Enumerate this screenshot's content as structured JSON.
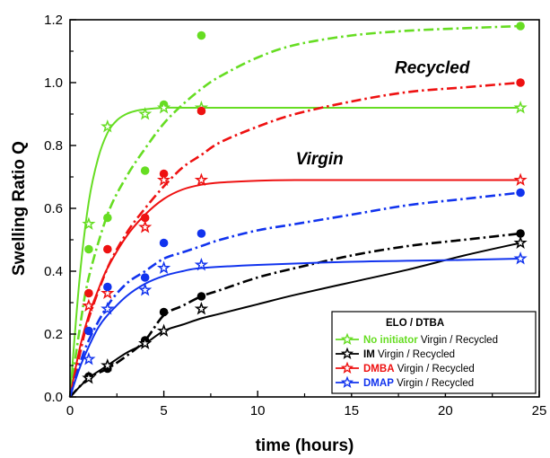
{
  "chart_data": {
    "type": "line",
    "xlabel": "time (hours)",
    "ylabel": "Swelling Ratio Q",
    "xlim": [
      0,
      25
    ],
    "ylim": [
      0,
      1.2
    ],
    "x_ticks": [
      0,
      5,
      10,
      15,
      20,
      25
    ],
    "x_tick_labels": [
      "0",
      "5",
      "10",
      "15",
      "20",
      "25"
    ],
    "y_ticks": [
      0,
      0.2,
      0.4,
      0.6,
      0.8,
      1.0,
      1.2
    ],
    "y_tick_labels": [
      "0.0",
      "0.2",
      "0.4",
      "0.6",
      "0.8",
      "1.0",
      "1.2"
    ],
    "grid": false,
    "legend_position": "bottom-right",
    "legend_title": "ELO / DTBA",
    "legend_suffix": "Virgin / Recycled",
    "annotations": [
      {
        "text": "Recycled",
        "x": 19.3,
        "y": 1.03
      },
      {
        "text": "Virgin",
        "x": 13.3,
        "y": 0.74
      }
    ],
    "series": [
      {
        "name": "No initiator",
        "color": "#66dd22",
        "virgin_points": {
          "x": [
            1,
            2,
            4,
            5,
            7,
            24
          ],
          "y": [
            0.55,
            0.86,
            0.9,
            0.92,
            0.92,
            0.92
          ]
        },
        "recycled_points": {
          "x": [
            1,
            2,
            4,
            5,
            7,
            24
          ],
          "y": [
            0.47,
            0.57,
            0.72,
            0.93,
            1.15,
            1.18
          ]
        },
        "virgin_fit": {
          "x": [
            0,
            0.5,
            1,
            1.5,
            2,
            2.5,
            3,
            3.5,
            4,
            5,
            6,
            7,
            10,
            15,
            20,
            24
          ],
          "y": [
            0,
            0.37,
            0.62,
            0.76,
            0.84,
            0.88,
            0.9,
            0.91,
            0.915,
            0.92,
            0.92,
            0.92,
            0.92,
            0.92,
            0.92,
            0.92
          ]
        },
        "recycled_fit": {
          "x": [
            0,
            0.5,
            1,
            2,
            3,
            4,
            5,
            6,
            7,
            8,
            10,
            12,
            15,
            18,
            21,
            24
          ],
          "y": [
            0,
            0.21,
            0.38,
            0.58,
            0.7,
            0.79,
            0.87,
            0.93,
            0.98,
            1.02,
            1.08,
            1.12,
            1.15,
            1.165,
            1.173,
            1.18
          ]
        }
      },
      {
        "name": "IM",
        "color": "#000000",
        "virgin_points": {
          "x": [
            1,
            2,
            4,
            5,
            7,
            24
          ],
          "y": [
            0.06,
            0.1,
            0.17,
            0.21,
            0.28,
            0.49
          ]
        },
        "recycled_points": {
          "x": [
            1,
            2,
            4,
            5,
            7,
            24
          ],
          "y": [
            0.065,
            0.09,
            0.18,
            0.27,
            0.32,
            0.52
          ]
        },
        "virgin_fit": {
          "x": [
            0,
            1,
            2,
            3,
            4,
            5,
            6,
            7,
            8,
            10,
            12,
            15,
            18,
            21,
            24
          ],
          "y": [
            0,
            0.06,
            0.1,
            0.14,
            0.17,
            0.21,
            0.23,
            0.25,
            0.265,
            0.295,
            0.325,
            0.365,
            0.405,
            0.45,
            0.49
          ]
        },
        "recycled_fit": {
          "x": [
            0,
            1,
            2,
            3,
            4,
            5,
            6,
            7,
            8,
            10,
            12,
            15,
            18,
            21,
            24
          ],
          "y": [
            0,
            0.06,
            0.09,
            0.13,
            0.18,
            0.26,
            0.29,
            0.32,
            0.34,
            0.38,
            0.41,
            0.45,
            0.48,
            0.5,
            0.52
          ]
        }
      },
      {
        "name": "DMBA",
        "color": "#ee1111",
        "virgin_points": {
          "x": [
            1,
            2,
            4,
            5,
            7,
            24
          ],
          "y": [
            0.29,
            0.33,
            0.54,
            0.69,
            0.69,
            0.69
          ]
        },
        "recycled_points": {
          "x": [
            1,
            2,
            4,
            5,
            7,
            24
          ],
          "y": [
            0.33,
            0.47,
            0.57,
            0.71,
            0.91,
            1.0
          ]
        },
        "virgin_fit": {
          "x": [
            0,
            0.5,
            1,
            1.5,
            2,
            3,
            4,
            5,
            6,
            7,
            8,
            10,
            12,
            15,
            20,
            24
          ],
          "y": [
            0,
            0.15,
            0.26,
            0.34,
            0.41,
            0.51,
            0.58,
            0.63,
            0.66,
            0.675,
            0.682,
            0.688,
            0.69,
            0.69,
            0.69,
            0.69
          ]
        },
        "recycled_fit": {
          "x": [
            0,
            0.5,
            1,
            2,
            3,
            4,
            5,
            6,
            7,
            8,
            10,
            12,
            15,
            18,
            21,
            24
          ],
          "y": [
            0,
            0.13,
            0.25,
            0.41,
            0.52,
            0.6,
            0.67,
            0.73,
            0.77,
            0.81,
            0.86,
            0.9,
            0.94,
            0.97,
            0.985,
            1.0
          ]
        }
      },
      {
        "name": "DMAP",
        "color": "#1133ee",
        "virgin_points": {
          "x": [
            1,
            2,
            4,
            5,
            7,
            24
          ],
          "y": [
            0.12,
            0.28,
            0.34,
            0.41,
            0.42,
            0.44
          ]
        },
        "recycled_points": {
          "x": [
            1,
            2,
            4,
            5,
            7,
            24
          ],
          "y": [
            0.21,
            0.35,
            0.38,
            0.49,
            0.52,
            0.65
          ]
        },
        "virgin_fit": {
          "x": [
            0,
            0.5,
            1,
            1.5,
            2,
            3,
            4,
            5,
            6,
            7,
            10,
            15,
            20,
            24
          ],
          "y": [
            0,
            0.09,
            0.16,
            0.22,
            0.26,
            0.32,
            0.36,
            0.385,
            0.4,
            0.41,
            0.42,
            0.43,
            0.435,
            0.44
          ]
        },
        "recycled_fit": {
          "x": [
            0,
            0.5,
            1,
            2,
            3,
            4,
            5,
            6,
            7,
            8,
            10,
            12,
            15,
            18,
            21,
            24
          ],
          "y": [
            0,
            0.1,
            0.18,
            0.29,
            0.36,
            0.4,
            0.44,
            0.46,
            0.48,
            0.5,
            0.53,
            0.55,
            0.58,
            0.61,
            0.63,
            0.65
          ]
        }
      }
    ]
  }
}
